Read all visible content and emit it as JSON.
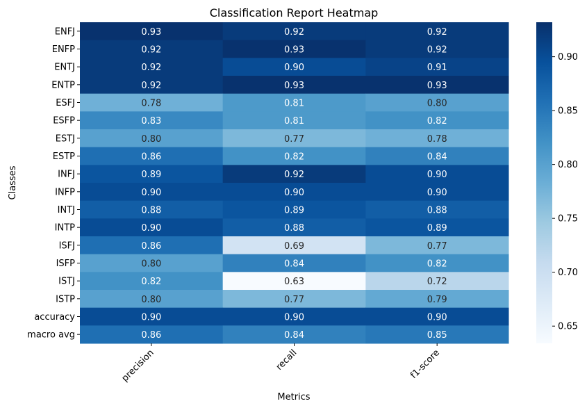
{
  "chart_data": {
    "type": "heatmap",
    "title": "Classification Report Heatmap",
    "xlabel": "Metrics",
    "ylabel": "Classes",
    "columns": [
      "precision",
      "recall",
      "f1-score"
    ],
    "rows": [
      "ENFJ",
      "ENFP",
      "ENTJ",
      "ENTP",
      "ESFJ",
      "ESFP",
      "ESTJ",
      "ESTP",
      "INFJ",
      "INFP",
      "INTJ",
      "INTP",
      "ISFJ",
      "ISFP",
      "ISTJ",
      "ISTP",
      "accuracy",
      "macro avg"
    ],
    "values": [
      [
        0.93,
        0.92,
        0.92
      ],
      [
        0.92,
        0.93,
        0.92
      ],
      [
        0.92,
        0.9,
        0.91
      ],
      [
        0.92,
        0.93,
        0.93
      ],
      [
        0.78,
        0.81,
        0.8
      ],
      [
        0.83,
        0.81,
        0.82
      ],
      [
        0.8,
        0.77,
        0.78
      ],
      [
        0.86,
        0.82,
        0.84
      ],
      [
        0.89,
        0.92,
        0.9
      ],
      [
        0.9,
        0.9,
        0.9
      ],
      [
        0.88,
        0.89,
        0.88
      ],
      [
        0.9,
        0.88,
        0.89
      ],
      [
        0.86,
        0.69,
        0.77
      ],
      [
        0.8,
        0.84,
        0.82
      ],
      [
        0.82,
        0.63,
        0.72
      ],
      [
        0.8,
        0.77,
        0.79
      ],
      [
        0.9,
        0.9,
        0.9
      ],
      [
        0.86,
        0.84,
        0.85
      ]
    ],
    "colormap": "Blues",
    "vmin": 0.634,
    "vmax": 0.932,
    "colorbar_ticks": [
      0.65,
      0.7,
      0.75,
      0.8,
      0.85,
      0.9
    ],
    "value_format": "2 decimals",
    "x_tick_rotation": 45
  }
}
